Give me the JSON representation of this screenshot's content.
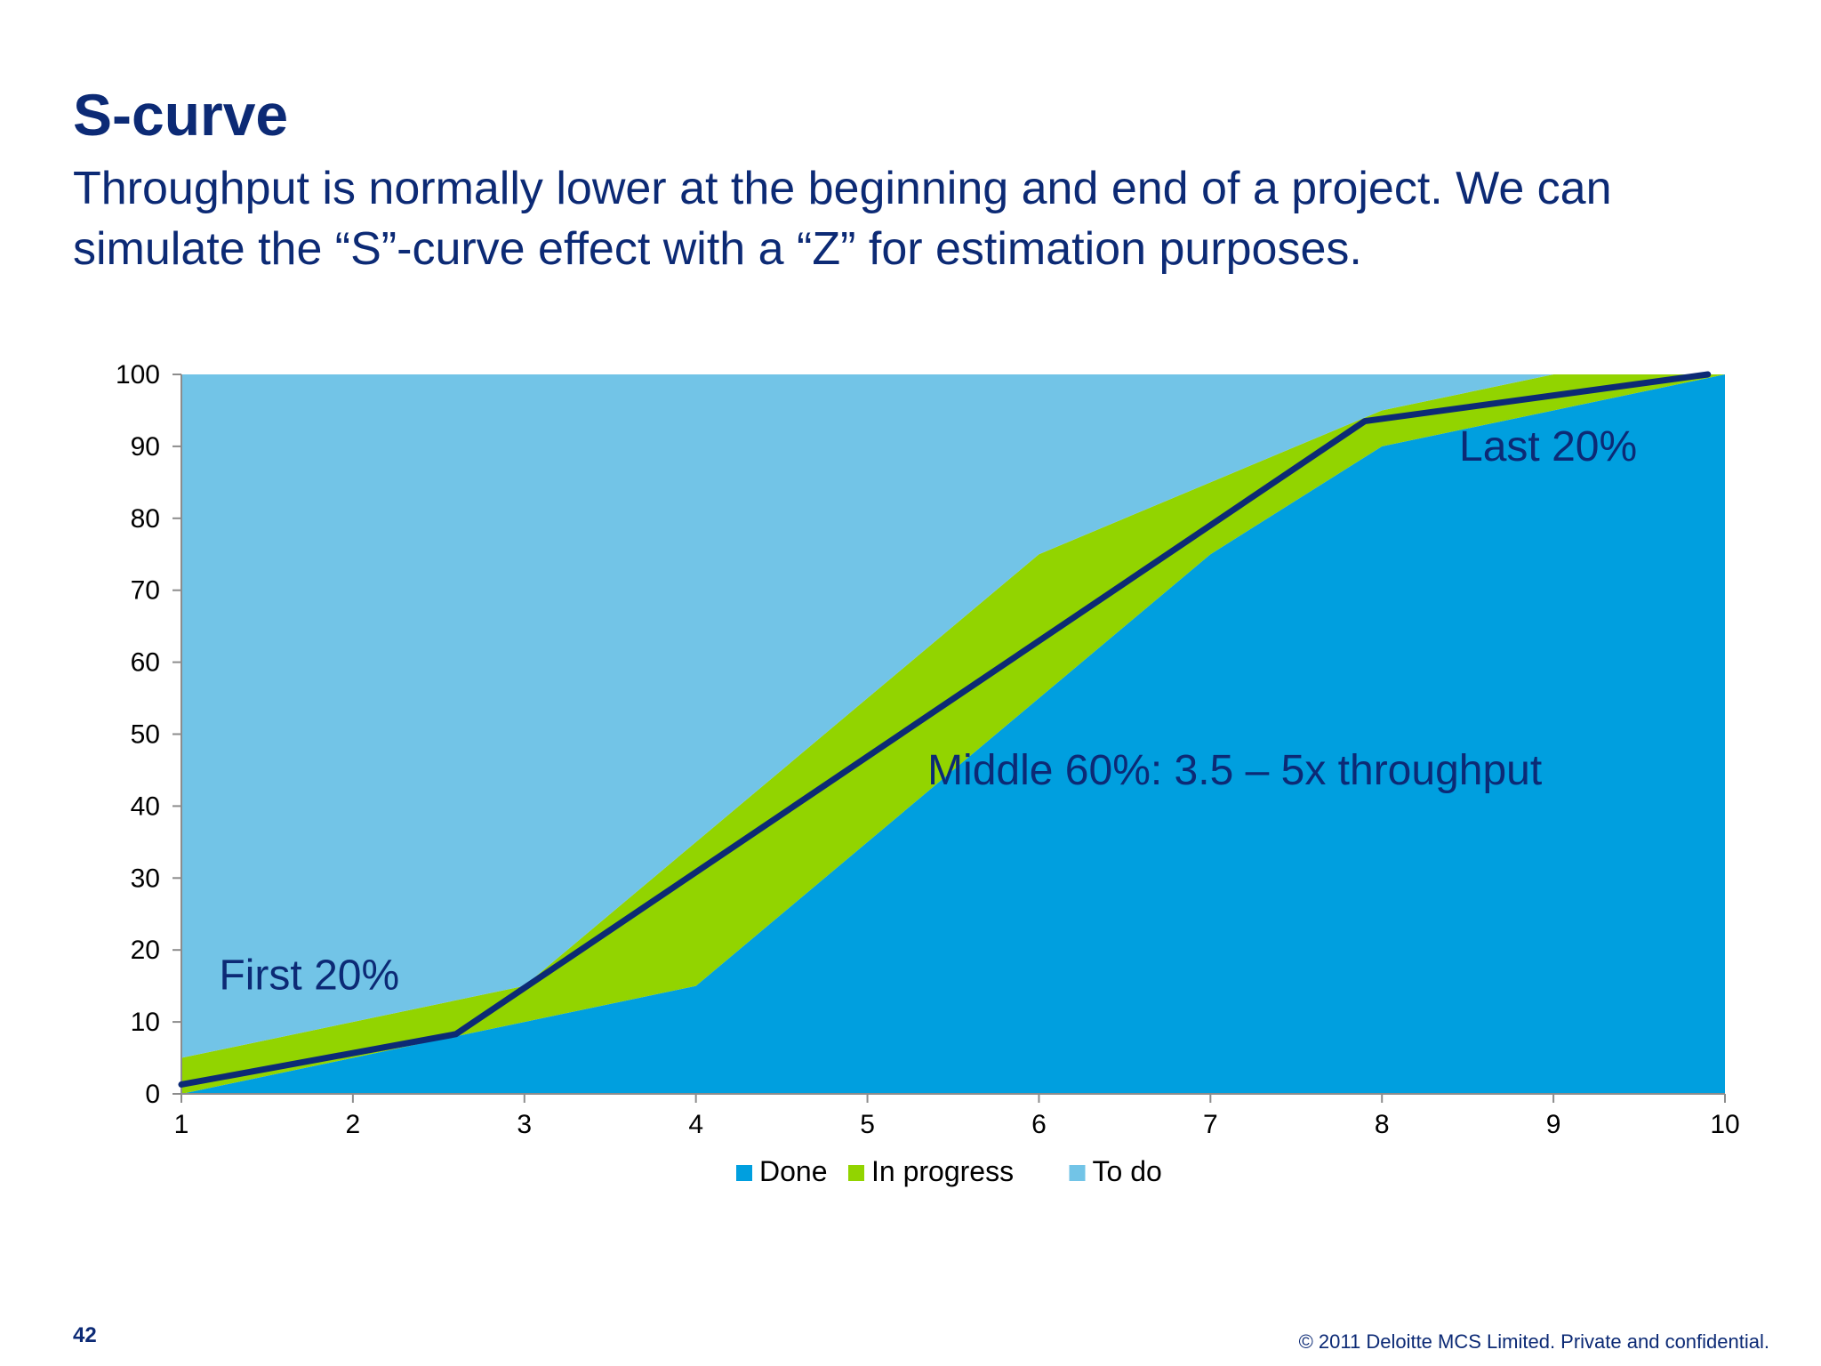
{
  "slide": {
    "title": "S-curve",
    "subtitle": "Throughput is normally lower at the beginning and end of a project. We can simulate the “S”-curve effect with a “Z” for estimation purposes.",
    "page_number": "42",
    "copyright": "© 2011 Deloitte MCS Limited. Private and confidential."
  },
  "chart_data": {
    "type": "area",
    "stacked": true,
    "x": [
      1,
      2,
      3,
      4,
      5,
      6,
      7,
      8,
      9,
      10
    ],
    "xlim": [
      1,
      10
    ],
    "ylim": [
      0,
      100
    ],
    "x_ticks": [
      "1",
      "2",
      "3",
      "4",
      "5",
      "6",
      "7",
      "8",
      "9",
      "10"
    ],
    "y_ticks": [
      "0",
      "10",
      "20",
      "30",
      "40",
      "50",
      "60",
      "70",
      "80",
      "90",
      "100"
    ],
    "series": [
      {
        "name": "Done",
        "color": "#009fdf",
        "values": [
          0,
          5,
          10,
          15,
          35,
          55,
          75,
          90,
          95,
          100
        ]
      },
      {
        "name": "In progress",
        "color": "#92d400",
        "values": [
          5,
          5,
          5,
          20,
          20,
          20,
          10,
          5,
          5,
          0
        ]
      },
      {
        "name": "To do",
        "color": "#72c4e7",
        "values": [
          95,
          90,
          85,
          65,
          45,
          25,
          15,
          5,
          0,
          0
        ]
      }
    ],
    "overlay_line": {
      "color": "#0c2a75",
      "points": [
        [
          1,
          1.3
        ],
        [
          2.6,
          8.3
        ],
        [
          7.9,
          93.5
        ],
        [
          9.9,
          100
        ]
      ]
    },
    "annotations": [
      {
        "id": "first",
        "text": "First 20%",
        "x": 1.22,
        "y": 14.5
      },
      {
        "id": "middle",
        "text": "Middle 60%: 3.5 – 5x throughput",
        "x": 5.35,
        "y": 43
      },
      {
        "id": "last",
        "text": "Last 20%",
        "x": 8.45,
        "y": 88
      }
    ],
    "legend_position": "bottom"
  }
}
